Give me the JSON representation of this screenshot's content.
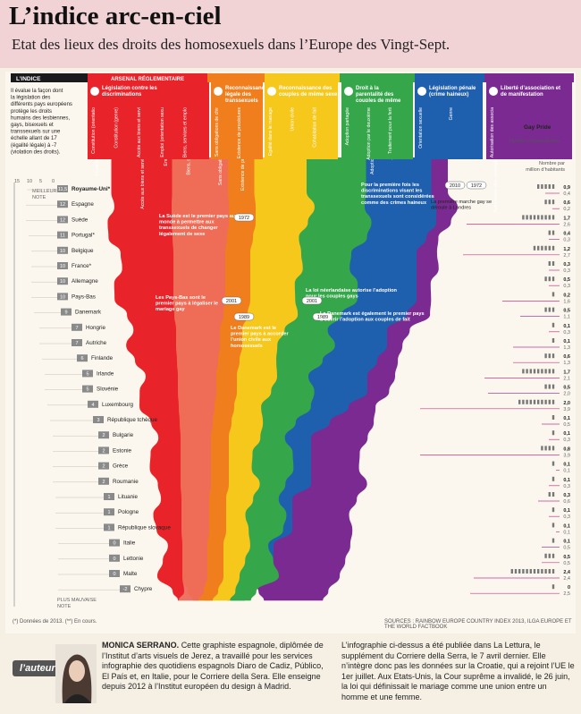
{
  "title": "L’indice arc-en-ciel",
  "subtitle": "Etat des lieux des droits des homosexuels dans l’Europe des Vingt-Sept.",
  "footnote": "(*) Données de 2013. (**) En cours.",
  "sources": "SOURCES : RAINBOW EUROPE COUNTRY INDEX 2013, ILGA EUROPE ET THE WORLD FACTBOOK",
  "author_tag": "l’auteure",
  "author": {
    "name": "MONICA SERRANO.",
    "bio": "Cette graphiste espagnole, diplômée de l’Institut d’arts visuels de Jerez, a travaillé pour les services infographie des quotidiens espagnols Diaro de Cadiz, Público, El País et, en Italie, pour le Corriere della Sera. Elle enseigne depuis 2012 à l’Institut européen du design à Madrid."
  },
  "publication_note": "L’infographie ci-dessus a été publiée dans La Lettura, le supplément du Corriere della Serra, le 7 avril dernier. Elle n’intègre donc pas les données sur la Croatie, qui a rejoint l’UE le 1er juillet. Aux Etats-Unis, la Cour suprême a invalidé, le 26 juin, la loi qui définissait le mariage comme une union entre un homme et une femme.",
  "colors": {
    "red": "#e8232a",
    "orange": "#f07e1d",
    "yellow": "#f7c81c",
    "green": "#35a64a",
    "blue": "#1e5fae",
    "purple": "#7b2a91",
    "magenta": "#c13a8c"
  },
  "chart_data": {
    "type": "table",
    "index_label": "L’INDICE",
    "index_description": "Il évalue la façon dont la législation des différents pays européens protège les droits humains des lesbiennes, gays, bisexuels et transsexuels sur une échelle allant de 17 (égalité légale) à -7 (violation des droits).",
    "scale_ticks": [
      "15",
      "10",
      "5",
      "0"
    ],
    "best_label": "MEILLEURE NOTE",
    "worst_label": "PLUS MAUVAISE NOTE",
    "arsenal_label": "ARSENAL RÉGLEMENTAIRE",
    "categories": [
      {
        "name": "Législation contre les discriminations",
        "color": "#e8232a",
        "subs": [
          "Constitution (orientation sexuelle)",
          "Constitution (genre)",
          "Accès aux biens et services (orientation sexuelle)",
          "Emploi (orientation sexuelle)",
          "Biens, services et emploi (genre)"
        ]
      },
      {
        "name": "Reconnaissance légale des transsexuels",
        "color": "#f07e1d",
        "subs": [
          "Sans obligations de chirurgie sexuelle",
          "Existence de procédures administratives"
        ]
      },
      {
        "name": "Reconnaissance des couples de même sexe",
        "color": "#f7c81c",
        "subs": [
          "Egalité dans le mariage",
          "Union civile",
          "Cohabitation de fait"
        ]
      },
      {
        "name": "Droit à la parentalité des couples de même sexe",
        "color": "#35a64a",
        "subs": [
          "Adoption partagée",
          "Adoption par le deuxième parent",
          "Traitement pour la fertilité"
        ]
      },
      {
        "name": "Législation pénale (crime haineux)",
        "color": "#1e5fae",
        "subs": [
          "Orientation sexuelle",
          "Genre"
        ]
      },
      {
        "name": "Liberté d’association et de manifestation",
        "color": "#7b2a91",
        "subs": [
          "Autorisation des associations et des manifestations"
        ]
      }
    ],
    "gay_pride_label": "Gay Pride",
    "associations_label": "Nombre d’associations",
    "population_label": "Nombre par million d’habitants",
    "countries": [
      {
        "name": "Royaume-Uni*",
        "score": "11,5",
        "pride": "0,9",
        "assoc": "0,4"
      },
      {
        "name": "Espagne",
        "score": "12",
        "pride": "0,6",
        "assoc": "0,2"
      },
      {
        "name": "Suède",
        "score": "12",
        "pride": "1,7",
        "assoc": "2,6"
      },
      {
        "name": "Portugal*",
        "score": "11",
        "pride": "0,4",
        "assoc": "0,3"
      },
      {
        "name": "Belgique",
        "score": "10",
        "pride": "1,2",
        "assoc": "2,7"
      },
      {
        "name": "France*",
        "score": "10",
        "pride": "0,3",
        "assoc": "0,3"
      },
      {
        "name": "Allemagne",
        "score": "10",
        "pride": "0,5",
        "assoc": "0,3"
      },
      {
        "name": "Pays-Bas",
        "score": "10",
        "pride": "0,2",
        "assoc": "1,6"
      },
      {
        "name": "Danemark",
        "score": "9",
        "pride": "0,5",
        "assoc": "1,1"
      },
      {
        "name": "Hongrie",
        "score": "7",
        "pride": "0,1",
        "assoc": "0,3"
      },
      {
        "name": "Autriche",
        "score": "7",
        "pride": "0,1",
        "assoc": "1,3"
      },
      {
        "name": "Finlande",
        "score": "6",
        "pride": "0,6",
        "assoc": "1,3"
      },
      {
        "name": "Irlande",
        "score": "5",
        "pride": "1,7",
        "assoc": "2,1"
      },
      {
        "name": "Slovénie",
        "score": "5",
        "pride": "0,5",
        "assoc": "2,0"
      },
      {
        "name": "Luxembourg",
        "score": "4",
        "pride": "2,0",
        "assoc": "3,9"
      },
      {
        "name": "République tchèque",
        "score": "3",
        "pride": "0,1",
        "assoc": "0,5"
      },
      {
        "name": "Bulgarie",
        "score": "2",
        "pride": "0,1",
        "assoc": "0,3"
      },
      {
        "name": "Estonie",
        "score": "2",
        "pride": "0,8",
        "assoc": "3,9"
      },
      {
        "name": "Grèce",
        "score": "2",
        "pride": "0,1",
        "assoc": "0,1"
      },
      {
        "name": "Roumanie",
        "score": "2",
        "pride": "0,1",
        "assoc": "0,3"
      },
      {
        "name": "Lituanie",
        "score": "1",
        "pride": "0,3",
        "assoc": "0,6"
      },
      {
        "name": "Pologne",
        "score": "1",
        "pride": "0,1",
        "assoc": "0,3"
      },
      {
        "name": "République slovaque",
        "score": "1",
        "pride": "0,1",
        "assoc": "0,1"
      },
      {
        "name": "Italie",
        "score": "0",
        "pride": "0,1",
        "assoc": "0,5"
      },
      {
        "name": "Lettonie",
        "score": "0",
        "pride": "0,5",
        "assoc": "0,5"
      },
      {
        "name": "Malte",
        "score": "0",
        "pride": "2,4",
        "assoc": "2,4"
      },
      {
        "name": "Chypre",
        "score": "-2",
        "pride": "0",
        "assoc": "2,5"
      }
    ],
    "annotations": [
      {
        "text": "Pour la première fois les discriminations visant les transsexuels sont considérées comme des crimes haineux",
        "year": "2010"
      },
      {
        "text": "La première marche gay se déroule à Londres",
        "year": "1972"
      },
      {
        "text": "La Suède est le premier pays au monde à permettre aux transsexuels de changer légalement de sexe",
        "year": "1972"
      },
      {
        "text": "Les Pays-Bas sont le premier pays à légaliser le mariage gay",
        "year": "2001"
      },
      {
        "text": "La loi néerlandaise autorise l’adoption pour les couples gays",
        "year": "2001"
      },
      {
        "text": "Le Danemark est le premier pays à accorder l’union civile aux homosexuels",
        "year": "1989"
      },
      {
        "text": "Le Danemark est également le premier pays à ouvrir l’adoption aux couples de fait",
        "year": "1989"
      }
    ]
  }
}
